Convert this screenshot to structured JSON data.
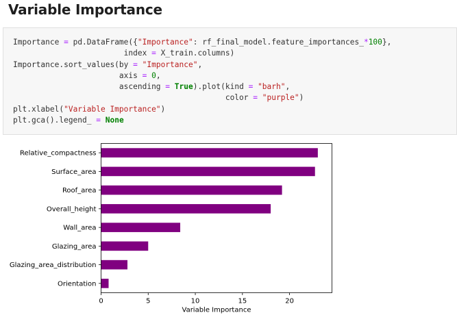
{
  "heading": "Variable Importance",
  "code_lines": [
    [
      {
        "t": "Importance ",
        "c": "plain"
      },
      {
        "t": "=",
        "c": "op"
      },
      {
        "t": " pd.DataFrame({",
        "c": "plain"
      },
      {
        "t": "\"Importance\"",
        "c": "str"
      },
      {
        "t": ": rf_final_model.feature_importances_",
        "c": "plain"
      },
      {
        "t": "*",
        "c": "op"
      },
      {
        "t": "100",
        "c": "num"
      },
      {
        "t": "},",
        "c": "plain"
      }
    ],
    [
      {
        "t": "                        index ",
        "c": "plain"
      },
      {
        "t": "=",
        "c": "op"
      },
      {
        "t": " X_train.columns)",
        "c": "plain"
      }
    ],
    [
      {
        "t": "Importance.sort_values(by ",
        "c": "plain"
      },
      {
        "t": "=",
        "c": "op"
      },
      {
        "t": " ",
        "c": "plain"
      },
      {
        "t": "\"Importance\"",
        "c": "str"
      },
      {
        "t": ",",
        "c": "plain"
      }
    ],
    [
      {
        "t": "                       axis ",
        "c": "plain"
      },
      {
        "t": "=",
        "c": "op"
      },
      {
        "t": " ",
        "c": "plain"
      },
      {
        "t": "0",
        "c": "num"
      },
      {
        "t": ",",
        "c": "plain"
      }
    ],
    [
      {
        "t": "                       ascending ",
        "c": "plain"
      },
      {
        "t": "=",
        "c": "op"
      },
      {
        "t": " ",
        "c": "plain"
      },
      {
        "t": "True",
        "c": "kw"
      },
      {
        "t": ").plot(kind ",
        "c": "plain"
      },
      {
        "t": "=",
        "c": "op"
      },
      {
        "t": " ",
        "c": "plain"
      },
      {
        "t": "\"barh\"",
        "c": "str"
      },
      {
        "t": ",",
        "c": "plain"
      }
    ],
    [
      {
        "t": "                                              color ",
        "c": "plain"
      },
      {
        "t": "=",
        "c": "op"
      },
      {
        "t": " ",
        "c": "plain"
      },
      {
        "t": "\"purple\"",
        "c": "str"
      },
      {
        "t": ")",
        "c": "plain"
      }
    ],
    [
      {
        "t": "plt.xlabel(",
        "c": "plain"
      },
      {
        "t": "\"Variable Importance\"",
        "c": "str"
      },
      {
        "t": ")",
        "c": "plain"
      }
    ],
    [
      {
        "t": "plt.gca().legend_ ",
        "c": "plain"
      },
      {
        "t": "=",
        "c": "op"
      },
      {
        "t": " ",
        "c": "plain"
      },
      {
        "t": "None",
        "c": "kw"
      }
    ]
  ],
  "chart_data": {
    "type": "bar",
    "orientation": "horizontal",
    "categories": [
      "Relative_compactness",
      "Surface_area",
      "Roof_area",
      "Overall_height",
      "Wall_area",
      "Glazing_area",
      "Glazing_area_distribution",
      "Orientation"
    ],
    "values": [
      23.0,
      22.7,
      19.2,
      18.0,
      8.4,
      5.0,
      2.8,
      0.8
    ],
    "xlabel": "Variable Importance",
    "xlim": [
      0,
      24.5
    ],
    "xticks": [
      0,
      5,
      10,
      15,
      20
    ],
    "bar_color": "#800080",
    "grid": false
  }
}
